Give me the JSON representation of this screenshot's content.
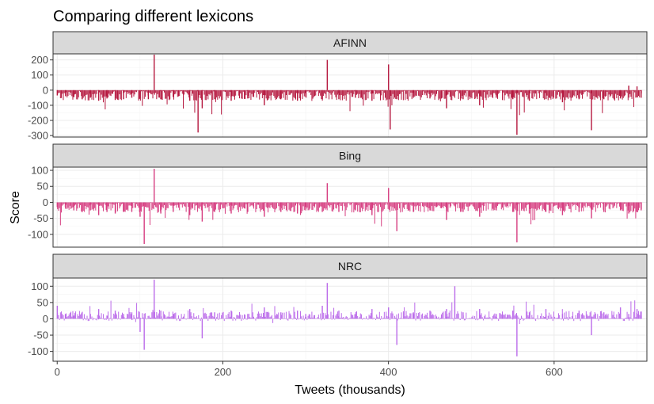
{
  "chart_data": {
    "type": "bar",
    "title": "Comparing different lexicons",
    "xlabel": "Tweets (thousands)",
    "ylabel": "Score",
    "x_ticks": [
      0,
      200,
      400,
      600
    ],
    "xlim": [
      -5,
      712
    ],
    "grid": true,
    "facets": [
      {
        "name": "AFINN",
        "color": "#b5173e",
        "ylim": [
          -310,
          240
        ],
        "y_ticks": [
          -300,
          -200,
          -100,
          0,
          100,
          200
        ],
        "x": [
          0,
          10,
          20,
          30,
          40,
          50,
          60,
          70,
          80,
          90,
          100,
          110,
          117,
          125,
          140,
          160,
          170,
          175,
          190,
          210,
          230,
          250,
          270,
          290,
          300,
          320,
          326,
          340,
          360,
          380,
          400,
          402,
          410,
          430,
          450,
          470,
          490,
          510,
          530,
          550,
          555,
          570,
          590,
          610,
          630,
          645,
          660,
          680,
          690,
          700,
          705
        ],
        "values": [
          -35,
          -40,
          -45,
          -60,
          -50,
          -70,
          -55,
          -65,
          -60,
          -50,
          -55,
          -60,
          235,
          -60,
          -45,
          -70,
          -280,
          -120,
          -60,
          -70,
          -55,
          -100,
          -60,
          -70,
          -45,
          -60,
          200,
          -60,
          -50,
          -70,
          170,
          -260,
          -60,
          -50,
          -55,
          -120,
          -60,
          -100,
          -50,
          -60,
          -295,
          -70,
          -60,
          -80,
          -60,
          -265,
          -60,
          -55,
          30,
          25,
          -50
        ]
      },
      {
        "name": "Bing",
        "color": "#d63d80",
        "ylim": [
          -140,
          110
        ],
        "y_ticks": [
          -100,
          -50,
          0,
          50,
          100
        ],
        "x": [
          0,
          10,
          20,
          30,
          40,
          50,
          60,
          70,
          80,
          90,
          100,
          105,
          117,
          125,
          140,
          160,
          175,
          190,
          210,
          230,
          250,
          270,
          290,
          300,
          320,
          326,
          340,
          360,
          380,
          400,
          410,
          430,
          450,
          470,
          490,
          510,
          530,
          550,
          555,
          570,
          590,
          610,
          630,
          645,
          660,
          680,
          690,
          700,
          705
        ],
        "values": [
          -15,
          -20,
          -25,
          -30,
          -25,
          -40,
          -30,
          -35,
          -30,
          -30,
          -45,
          -130,
          105,
          -35,
          -30,
          -40,
          -60,
          -30,
          -35,
          -30,
          -45,
          -30,
          -35,
          -25,
          -30,
          60,
          -30,
          -25,
          -40,
          45,
          -90,
          -30,
          -25,
          -55,
          -30,
          -45,
          -25,
          -30,
          -125,
          -35,
          -30,
          -40,
          -30,
          -50,
          -30,
          -25,
          -35,
          -30,
          -25
        ]
      },
      {
        "name": "NRC",
        "color": "#bb6bea",
        "ylim": [
          -130,
          125
        ],
        "y_ticks": [
          -100,
          -50,
          0,
          50,
          100
        ],
        "x": [
          0,
          10,
          20,
          30,
          40,
          50,
          60,
          70,
          80,
          90,
          100,
          105,
          117,
          125,
          140,
          160,
          175,
          190,
          210,
          230,
          250,
          270,
          290,
          300,
          320,
          326,
          340,
          360,
          380,
          400,
          410,
          430,
          450,
          470,
          480,
          490,
          510,
          530,
          550,
          555,
          570,
          590,
          610,
          630,
          645,
          660,
          680,
          690,
          700,
          705
        ],
        "values": [
          40,
          15,
          10,
          20,
          15,
          30,
          10,
          25,
          15,
          20,
          -40,
          -95,
          120,
          25,
          15,
          30,
          -60,
          20,
          25,
          15,
          35,
          20,
          25,
          15,
          40,
          110,
          25,
          15,
          30,
          35,
          -80,
          20,
          25,
          30,
          100,
          20,
          30,
          15,
          25,
          -115,
          20,
          30,
          15,
          25,
          -50,
          20,
          35,
          15,
          30,
          10
        ]
      }
    ]
  }
}
